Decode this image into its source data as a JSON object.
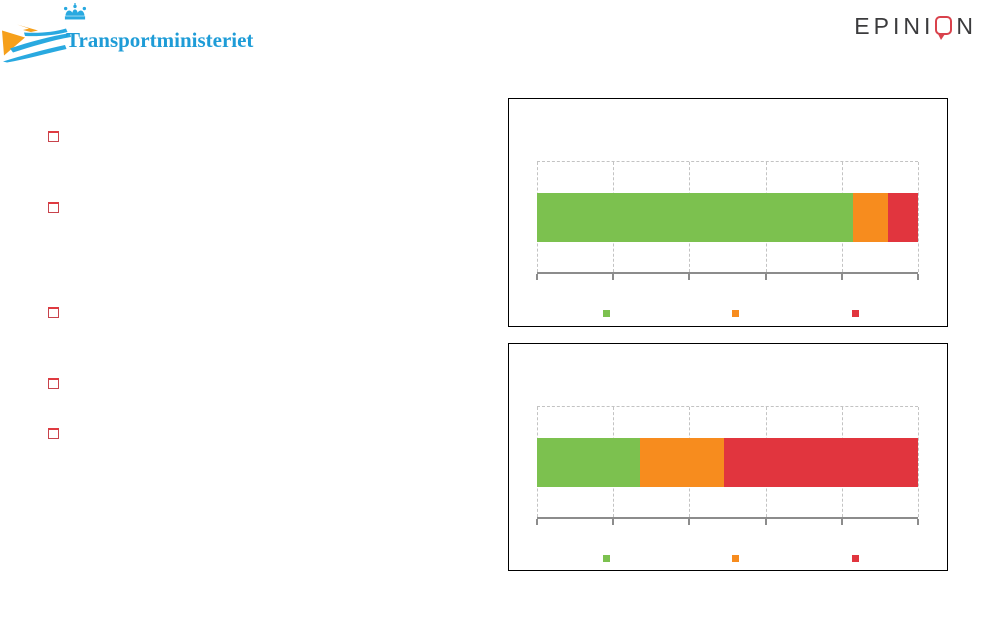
{
  "header": {
    "transport_logo": {
      "text": "Transportministeriet",
      "text_color": "#1E9CD7",
      "blue": "#29A9E0",
      "orange": "#F6A01B"
    },
    "epinion_logo": {
      "part1": "EPINI",
      "part2": "N",
      "text_color": "#3B3B3D",
      "bubble_color": "#D9424C"
    }
  },
  "bullets": {
    "marker_color": "#C8434C",
    "items": [
      "",
      "",
      "",
      "",
      ""
    ]
  },
  "chart_data": [
    {
      "type": "bar",
      "orientation": "horizontal",
      "stacked": true,
      "title": "",
      "categories": [
        ""
      ],
      "series": [
        {
          "name": "green",
          "color": "#7CC14F",
          "values": [
            83
          ]
        },
        {
          "name": "orange",
          "color": "#F78C1E",
          "values": [
            9
          ]
        },
        {
          "name": "red",
          "color": "#E1353E",
          "values": [
            8
          ]
        }
      ],
      "xlim": [
        0,
        100
      ],
      "x_ticks_percent": [
        0,
        20,
        40,
        60,
        80,
        100
      ],
      "grid": "dashed-vertical",
      "legend_position": "bottom",
      "legend_labels": [
        "",
        "",
        ""
      ]
    },
    {
      "type": "bar",
      "orientation": "horizontal",
      "stacked": true,
      "title": "",
      "categories": [
        ""
      ],
      "series": [
        {
          "name": "green",
          "color": "#7CC14F",
          "values": [
            27
          ]
        },
        {
          "name": "orange",
          "color": "#F78C1E",
          "values": [
            22
          ]
        },
        {
          "name": "red",
          "color": "#E1353E",
          "values": [
            51
          ]
        }
      ],
      "xlim": [
        0,
        100
      ],
      "x_ticks_percent": [
        0,
        20,
        40,
        60,
        80,
        100
      ],
      "grid": "dashed-vertical",
      "legend_position": "bottom",
      "legend_labels": [
        "",
        "",
        ""
      ]
    }
  ]
}
